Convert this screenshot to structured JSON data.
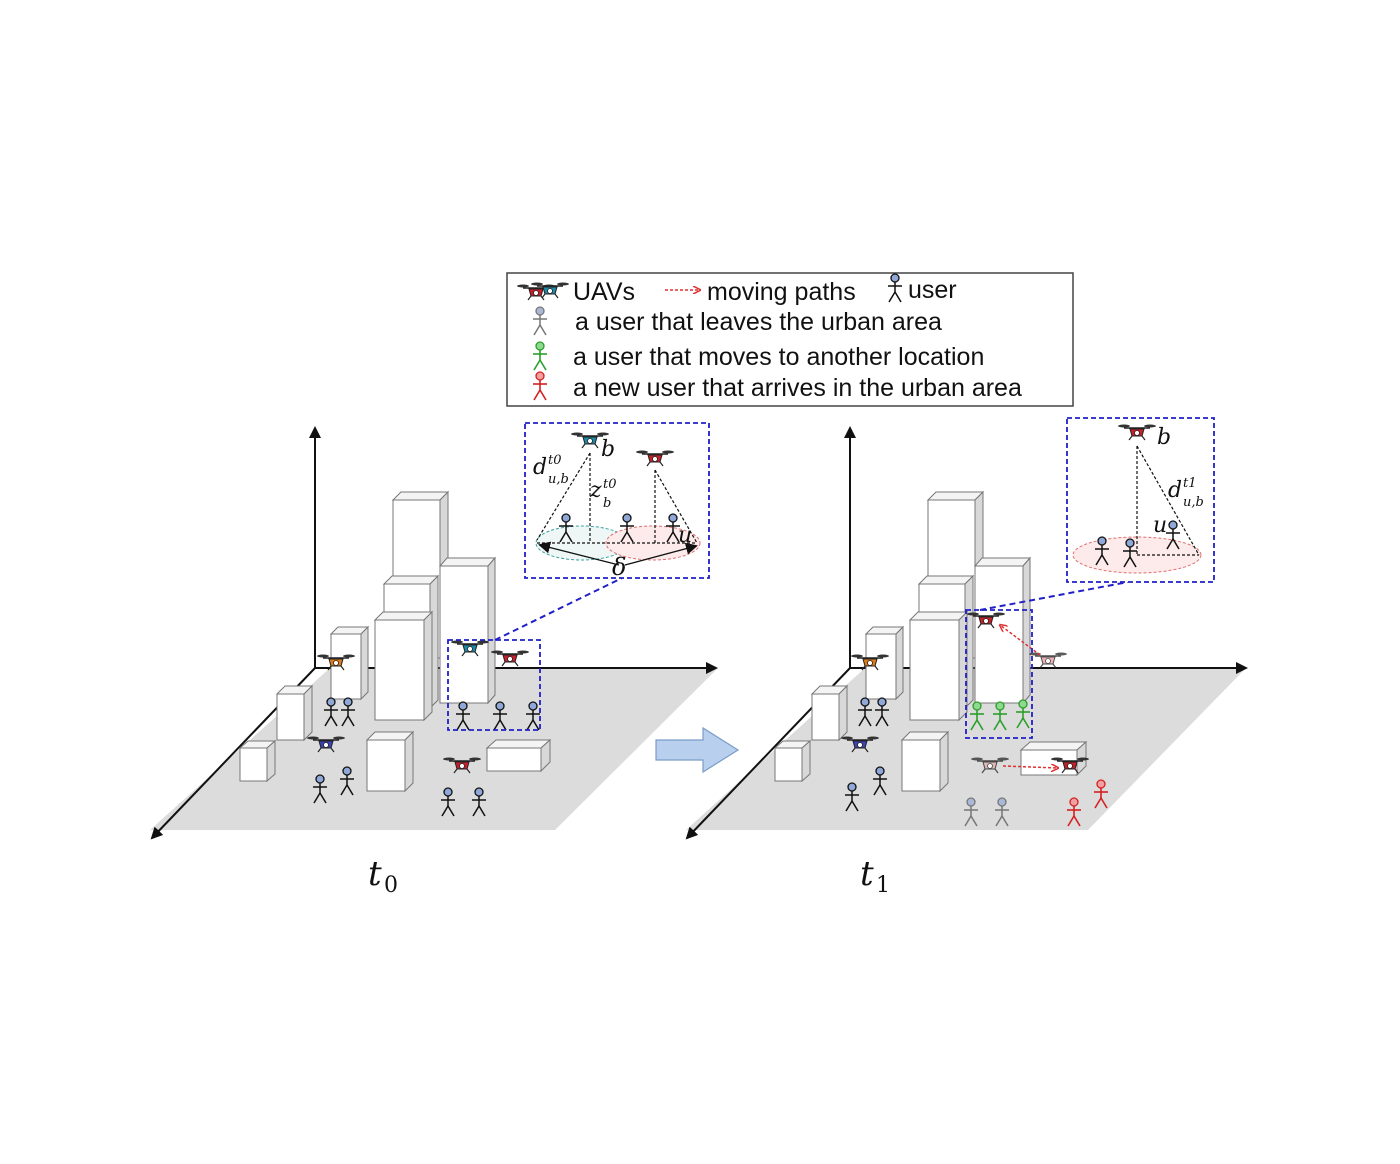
{
  "legend": {
    "uavs_label": "UAVs",
    "moving_paths_label": "moving paths",
    "user_label": "user",
    "leaving_user_label": "a user that leaves the urban area",
    "moving_user_label": "a user that moves to another location",
    "new_user_label": "a new user that arrives in the urban area"
  },
  "panels": [
    {
      "caption_main": "t",
      "caption_sub": "0",
      "inset": {
        "uav_label": "b",
        "distance_label": "d",
        "distance_sup": "t0",
        "distance_sub": "u,b",
        "height_label": "z",
        "height_sup": "t0",
        "height_sub": "b",
        "user_label": "u",
        "radius_label": "δ"
      }
    },
    {
      "caption_main": "t",
      "caption_sub": "1",
      "inset": {
        "uav_label": "b",
        "distance_label": "d",
        "distance_sup": "t1",
        "distance_sub": "u,b",
        "user_label": "u"
      }
    }
  ],
  "colors": {
    "uav_teal": "#1e8aa8",
    "uav_red": "#c8202a",
    "uav_orange": "#e07b1a",
    "uav_blue": "#3b43b5",
    "uav_faded": "#b0b0b0",
    "user_green": "#2aa02a",
    "user_red": "#d42020",
    "user_gray": "#8a8a8a",
    "inset_border": "#2020c8",
    "ground": "#dcdcdc",
    "path_red": "#e03030"
  },
  "icons": [
    "drone-icon",
    "stick-figure-icon",
    "arrow-right-icon"
  ]
}
